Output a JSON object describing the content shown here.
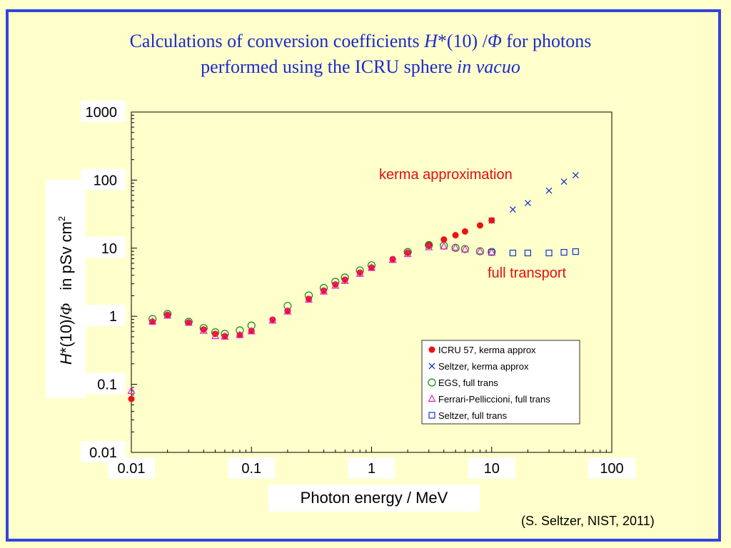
{
  "title": {
    "line1_pre": "Calculations of conversion coefficients ",
    "line1_sym": "H",
    "line1_mid": "*(10) /",
    "line1_phi": "Φ",
    "line1_post": " for photons",
    "line2_pre": "performed using the ICRU sphere ",
    "line2_it": "in vacuo"
  },
  "credit": "(S. Seltzer, NIST, 2011)",
  "colors": {
    "frame": "#3344dd",
    "background": "#ffffcc",
    "title": "#1a2acc",
    "icru": "#ee1111",
    "seltzer_kerma": "#1133cc",
    "egs": "#118811",
    "ferrari": "#dd22cc",
    "seltzer_full": "#1133cc"
  },
  "chart_data": {
    "type": "scatter",
    "xlabel": "Photon energy / MeV",
    "ylabel": {
      "sym": "H",
      "mid": "*(10)/",
      "phi": "Φ",
      "unit": "in  pSv cm",
      "sup": "2"
    },
    "xscale": "log",
    "yscale": "log",
    "xlim": [
      0.01,
      100
    ],
    "ylim": [
      0.01,
      1000
    ],
    "xticks": [
      "0.01",
      "0.1",
      "1",
      "10",
      "100"
    ],
    "yticks": [
      "0.01",
      "0.1",
      "1",
      "10",
      "100",
      "1000"
    ],
    "grid": false,
    "legend_position": "lower-right",
    "annotations": [
      {
        "text": "kerma approximation",
        "color": "#e01010"
      },
      {
        "text": "full transport",
        "color": "#e01010"
      }
    ],
    "series": [
      {
        "name": "ICRU 57, kerma approx",
        "marker": "filled-circle",
        "color": "#ee1111",
        "x": [
          0.01,
          0.015,
          0.02,
          0.03,
          0.04,
          0.05,
          0.06,
          0.08,
          0.1,
          0.15,
          0.2,
          0.3,
          0.4,
          0.5,
          0.6,
          0.8,
          1,
          1.5,
          2,
          3,
          4,
          5,
          6,
          8,
          10
        ],
        "y": [
          0.061,
          0.83,
          1.05,
          0.81,
          0.64,
          0.55,
          0.51,
          0.53,
          0.61,
          0.89,
          1.2,
          1.8,
          2.38,
          2.93,
          3.44,
          4.38,
          5.2,
          6.9,
          8.6,
          11.1,
          13.4,
          15.5,
          17.6,
          21.6,
          25.6
        ]
      },
      {
        "name": "Seltzer, kerma approx",
        "marker": "x",
        "color": "#1133cc",
        "x": [
          10,
          15,
          20,
          30,
          40,
          50
        ],
        "y": [
          25.5,
          37,
          46,
          70,
          95,
          118
        ]
      },
      {
        "name": "EGS, full trans",
        "marker": "open-circle",
        "color": "#118811",
        "x": [
          0.015,
          0.02,
          0.03,
          0.04,
          0.05,
          0.06,
          0.08,
          0.1,
          0.2,
          0.3,
          0.4,
          0.5,
          0.6,
          0.8,
          1,
          2,
          3,
          4,
          5,
          6,
          8,
          10
        ],
        "y": [
          0.91,
          1.08,
          0.83,
          0.67,
          0.58,
          0.55,
          0.62,
          0.73,
          1.42,
          2.02,
          2.6,
          3.2,
          3.7,
          4.7,
          5.6,
          8.8,
          11.1,
          10.9,
          10.1,
          9.7,
          9.0,
          8.8
        ]
      },
      {
        "name": "Ferrari-Pelliccioni, full trans",
        "marker": "open-triangle",
        "color": "#dd22cc",
        "x": [
          0.01,
          0.015,
          0.02,
          0.03,
          0.04,
          0.05,
          0.06,
          0.08,
          0.1,
          0.15,
          0.2,
          0.3,
          0.4,
          0.5,
          0.6,
          0.8,
          1,
          1.5,
          2,
          3,
          4,
          5,
          6,
          8,
          10
        ],
        "y": [
          0.08,
          0.83,
          1.02,
          0.8,
          0.61,
          0.51,
          0.5,
          0.53,
          0.6,
          0.86,
          1.17,
          1.75,
          2.3,
          2.8,
          3.3,
          4.2,
          5.1,
          6.7,
          8.2,
          10.3,
          10.6,
          10.2,
          9.6,
          9.0,
          8.7
        ]
      },
      {
        "name": "Seltzer, full trans",
        "marker": "open-square",
        "color": "#1133cc",
        "x": [
          10,
          15,
          20,
          30,
          40,
          50
        ],
        "y": [
          8.7,
          8.5,
          8.5,
          8.5,
          8.7,
          8.9
        ]
      }
    ]
  }
}
